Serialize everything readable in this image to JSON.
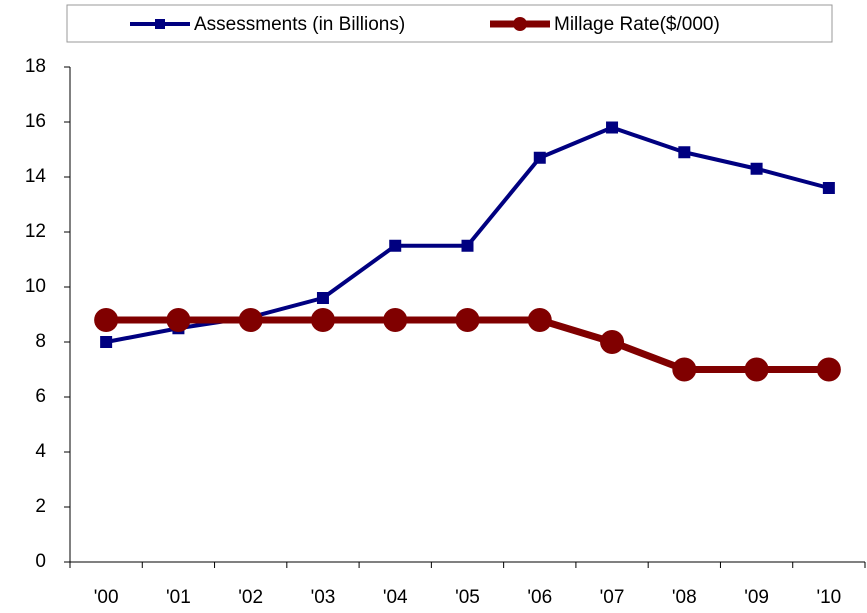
{
  "chart_data": {
    "type": "line",
    "categories": [
      "'00",
      "'01",
      "'02",
      "'03",
      "'04",
      "'05",
      "'06",
      "'07",
      "'08",
      "'09",
      "'10"
    ],
    "series": [
      {
        "name": "Assessments (in Billions)",
        "color": "#000080",
        "marker": "square",
        "values": [
          8.0,
          8.5,
          8.9,
          9.6,
          11.5,
          11.5,
          14.7,
          15.8,
          14.9,
          14.3,
          13.6
        ]
      },
      {
        "name": "Millage Rate($/000)",
        "color": "#800000",
        "marker": "circle",
        "values": [
          8.8,
          8.8,
          8.8,
          8.8,
          8.8,
          8.8,
          8.8,
          8.0,
          7.0,
          7.0,
          7.0
        ]
      }
    ],
    "ylim": [
      0,
      18
    ],
    "yticks": [
      0,
      2,
      4,
      6,
      8,
      10,
      12,
      14,
      16,
      18
    ],
    "grid": false,
    "legend": "top"
  }
}
